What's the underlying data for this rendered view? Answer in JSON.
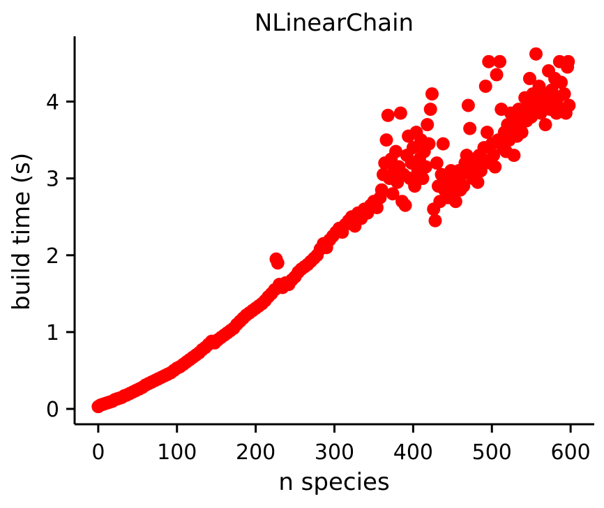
{
  "chart_data": {
    "type": "scatter",
    "title": "NLinearChain",
    "xlabel": "n species",
    "ylabel": "build time (s)",
    "xlim": [
      -30,
      630
    ],
    "ylim": [
      -0.2,
      4.85
    ],
    "xticks": [
      0,
      100,
      200,
      300,
      400,
      500,
      600
    ],
    "yticks": [
      0,
      1,
      2,
      3,
      4
    ],
    "xtick_labels": [
      "0",
      "100",
      "200",
      "300",
      "400",
      "500",
      "600"
    ],
    "ytick_labels": [
      "0",
      "1",
      "2",
      "3",
      "4"
    ],
    "grid": false,
    "marker_color": "#ff0000",
    "series": [
      {
        "points": [
          [
            0,
            0.03
          ],
          [
            3,
            0.05
          ],
          [
            6,
            0.06
          ],
          [
            9,
            0.07
          ],
          [
            12,
            0.08
          ],
          [
            15,
            0.09
          ],
          [
            18,
            0.1
          ],
          [
            21,
            0.12
          ],
          [
            24,
            0.13
          ],
          [
            27,
            0.14
          ],
          [
            30,
            0.15
          ],
          [
            33,
            0.17
          ],
          [
            36,
            0.18
          ],
          [
            40,
            0.2
          ],
          [
            44,
            0.22
          ],
          [
            48,
            0.24
          ],
          [
            52,
            0.26
          ],
          [
            56,
            0.28
          ],
          [
            60,
            0.31
          ],
          [
            64,
            0.33
          ],
          [
            68,
            0.35
          ],
          [
            72,
            0.37
          ],
          [
            76,
            0.39
          ],
          [
            80,
            0.41
          ],
          [
            84,
            0.43
          ],
          [
            88,
            0.45
          ],
          [
            92,
            0.47
          ],
          [
            96,
            0.5
          ],
          [
            100,
            0.53
          ],
          [
            104,
            0.55
          ],
          [
            108,
            0.58
          ],
          [
            112,
            0.61
          ],
          [
            116,
            0.64
          ],
          [
            120,
            0.67
          ],
          [
            124,
            0.7
          ],
          [
            128,
            0.73
          ],
          [
            132,
            0.77
          ],
          [
            136,
            0.8
          ],
          [
            140,
            0.84
          ],
          [
            144,
            0.88
          ],
          [
            148,
            0.86
          ],
          [
            152,
            0.9
          ],
          [
            156,
            0.93
          ],
          [
            160,
            0.96
          ],
          [
            164,
            0.99
          ],
          [
            168,
            1.02
          ],
          [
            172,
            1.05
          ],
          [
            176,
            1.1
          ],
          [
            180,
            1.14
          ],
          [
            184,
            1.18
          ],
          [
            188,
            1.22
          ],
          [
            192,
            1.25
          ],
          [
            196,
            1.28
          ],
          [
            200,
            1.31
          ],
          [
            204,
            1.34
          ],
          [
            208,
            1.37
          ],
          [
            212,
            1.41
          ],
          [
            216,
            1.46
          ],
          [
            220,
            1.5
          ],
          [
            224,
            1.55
          ],
          [
            226,
            1.95
          ],
          [
            228,
            1.9
          ],
          [
            230,
            1.62
          ],
          [
            234,
            1.58
          ],
          [
            238,
            1.64
          ],
          [
            242,
            1.62
          ],
          [
            246,
            1.68
          ],
          [
            250,
            1.72
          ],
          [
            254,
            1.78
          ],
          [
            258,
            1.82
          ],
          [
            262,
            1.85
          ],
          [
            266,
            1.88
          ],
          [
            270,
            1.92
          ],
          [
            274,
            1.96
          ],
          [
            278,
            2.0
          ],
          [
            282,
            2.08
          ],
          [
            286,
            2.15
          ],
          [
            290,
            2.1
          ],
          [
            294,
            2.2
          ],
          [
            298,
            2.25
          ],
          [
            302,
            2.3
          ],
          [
            306,
            2.35
          ],
          [
            310,
            2.3
          ],
          [
            314,
            2.4
          ],
          [
            318,
            2.45
          ],
          [
            322,
            2.5
          ],
          [
            326,
            2.38
          ],
          [
            330,
            2.55
          ],
          [
            334,
            2.48
          ],
          [
            338,
            2.6
          ],
          [
            342,
            2.55
          ],
          [
            346,
            2.65
          ],
          [
            350,
            2.7
          ],
          [
            354,
            2.62
          ],
          [
            358,
            2.75
          ],
          [
            360,
            2.85
          ],
          [
            362,
            3.05
          ],
          [
            364,
            3.2
          ],
          [
            366,
            3.5
          ],
          [
            368,
            3.82
          ],
          [
            370,
            3.0
          ],
          [
            372,
            3.25
          ],
          [
            374,
            2.8
          ],
          [
            376,
            3.1
          ],
          [
            378,
            3.35
          ],
          [
            380,
            2.95
          ],
          [
            382,
            3.15
          ],
          [
            384,
            3.85
          ],
          [
            386,
            2.7
          ],
          [
            388,
            3.05
          ],
          [
            390,
            2.65
          ],
          [
            392,
            3.3
          ],
          [
            394,
            3.55
          ],
          [
            396,
            3.0
          ],
          [
            398,
            3.2
          ],
          [
            400,
            3.4
          ],
          [
            402,
            2.9
          ],
          [
            404,
            3.6
          ],
          [
            406,
            3.1
          ],
          [
            408,
            3.25
          ],
          [
            410,
            3.5
          ],
          [
            412,
            3.0
          ],
          [
            414,
            3.35
          ],
          [
            416,
            3.15
          ],
          [
            418,
            3.7
          ],
          [
            420,
            3.45
          ],
          [
            422,
            3.9
          ],
          [
            424,
            4.1
          ],
          [
            426,
            2.6
          ],
          [
            428,
            2.45
          ],
          [
            430,
            3.2
          ],
          [
            432,
            2.9
          ],
          [
            434,
            2.7
          ],
          [
            436,
            3.05
          ],
          [
            438,
            3.45
          ],
          [
            440,
            2.85
          ],
          [
            442,
            3.0
          ],
          [
            444,
            2.75
          ],
          [
            446,
            2.9
          ],
          [
            448,
            3.1
          ],
          [
            450,
            2.8
          ],
          [
            452,
            3.0
          ],
          [
            454,
            2.7
          ],
          [
            456,
            2.95
          ],
          [
            458,
            3.1
          ],
          [
            460,
            2.85
          ],
          [
            462,
            3.05
          ],
          [
            464,
            2.9
          ],
          [
            466,
            3.2
          ],
          [
            468,
            3.3
          ],
          [
            470,
            3.95
          ],
          [
            472,
            3.65
          ],
          [
            474,
            3.1
          ],
          [
            476,
            3.0
          ],
          [
            478,
            3.25
          ],
          [
            480,
            3.15
          ],
          [
            482,
            2.95
          ],
          [
            484,
            3.3
          ],
          [
            486,
            3.1
          ],
          [
            488,
            3.25
          ],
          [
            490,
            3.4
          ],
          [
            492,
            4.2
          ],
          [
            494,
            3.6
          ],
          [
            496,
            4.52
          ],
          [
            498,
            3.2
          ],
          [
            500,
            3.45
          ],
          [
            502,
            3.3
          ],
          [
            504,
            3.15
          ],
          [
            506,
            4.35
          ],
          [
            508,
            3.5
          ],
          [
            510,
            4.52
          ],
          [
            512,
            3.9
          ],
          [
            514,
            3.4
          ],
          [
            516,
            3.6
          ],
          [
            518,
            3.35
          ],
          [
            520,
            3.7
          ],
          [
            522,
            3.5
          ],
          [
            524,
            3.85
          ],
          [
            526,
            3.65
          ],
          [
            528,
            3.3
          ],
          [
            530,
            3.8
          ],
          [
            532,
            3.55
          ],
          [
            534,
            3.9
          ],
          [
            536,
            3.7
          ],
          [
            538,
            3.6
          ],
          [
            540,
            3.85
          ],
          [
            542,
            4.05
          ],
          [
            544,
            3.75
          ],
          [
            546,
            3.95
          ],
          [
            548,
            4.3
          ],
          [
            550,
            3.8
          ],
          [
            552,
            4.1
          ],
          [
            554,
            3.9
          ],
          [
            556,
            4.62
          ],
          [
            558,
            4.0
          ],
          [
            560,
            4.2
          ],
          [
            562,
            3.85
          ],
          [
            564,
            4.05
          ],
          [
            566,
            3.95
          ],
          [
            568,
            3.7
          ],
          [
            570,
            4.1
          ],
          [
            572,
            4.4
          ],
          [
            574,
            3.9
          ],
          [
            576,
            4.15
          ],
          [
            578,
            4.0
          ],
          [
            580,
            4.3
          ],
          [
            582,
            3.85
          ],
          [
            584,
            4.05
          ],
          [
            586,
            4.52
          ],
          [
            588,
            4.25
          ],
          [
            590,
            3.9
          ],
          [
            592,
            4.1
          ],
          [
            594,
            3.85
          ],
          [
            596,
            4.45
          ],
          [
            598,
            3.95
          ],
          [
            597,
            4.52
          ]
        ]
      }
    ]
  }
}
